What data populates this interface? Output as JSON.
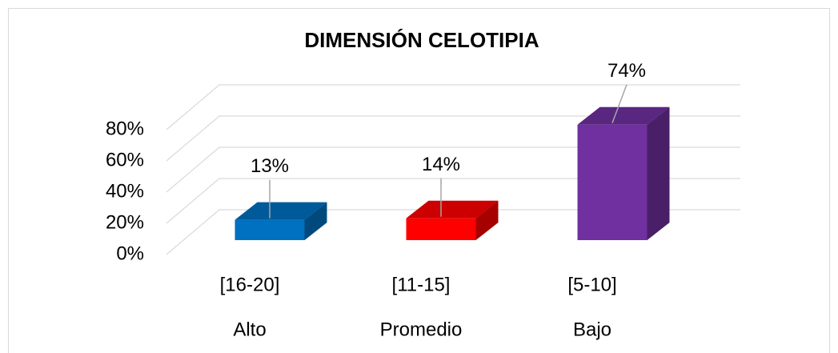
{
  "chart_data": {
    "type": "bar3d",
    "title": "DIMENSIÓN CELOTIPIA",
    "categories": [
      [
        "[16-20]",
        "Alto"
      ],
      [
        "[11-15]",
        "Promedio"
      ],
      [
        "[5-10]",
        "Bajo"
      ]
    ],
    "values": [
      13,
      14,
      74
    ],
    "value_labels": [
      "13%",
      "14%",
      "74%"
    ],
    "colors": [
      "#0070c0",
      "#ff0000",
      "#7030a0"
    ],
    "ylim": [
      0,
      80
    ],
    "yticks": [
      {
        "value": 0,
        "label": "0%"
      },
      {
        "value": 20,
        "label": "20%"
      },
      {
        "value": 40,
        "label": "40%"
      },
      {
        "value": 60,
        "label": "60%"
      },
      {
        "value": 80,
        "label": "80%"
      }
    ],
    "grid": true
  }
}
